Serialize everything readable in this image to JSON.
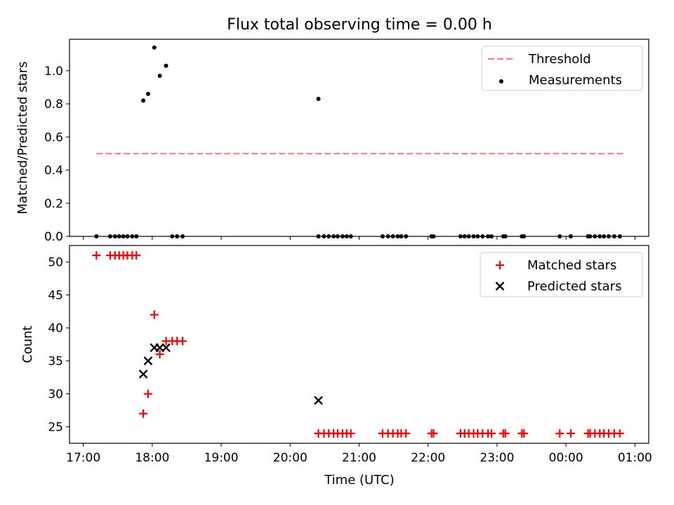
{
  "title": "Flux total observing time = 0.00 h",
  "xlabel": "Time (UTC)",
  "x_tick_labels": [
    "17:00",
    "18:00",
    "19:00",
    "20:00",
    "21:00",
    "22:00",
    "23:00",
    "00:00",
    "01:00"
  ],
  "colors": {
    "threshold": "#ff7f7f",
    "measurement": "#000000",
    "matched": "#ff0000",
    "predicted": "#000000"
  },
  "chart_data": [
    {
      "type": "scatter",
      "ylabel": "Matched/Predicted stars",
      "ylim": [
        0,
        1.19
      ],
      "yticks": [
        "0.0",
        "0.2",
        "0.4",
        "0.6",
        "0.8",
        "1.0"
      ],
      "ytick_values": [
        0,
        0.2,
        0.4,
        0.6,
        0.8,
        1.0
      ],
      "x_unit": "hours after 17:00 UTC",
      "xlim": [
        -0.2,
        8.2
      ],
      "legend": {
        "placement": "top-right",
        "entries": [
          "Threshold",
          "Measurements"
        ]
      },
      "threshold": {
        "name": "Threshold",
        "y": 0.5,
        "x_start": 0.19,
        "x_end": 7.83
      },
      "series": [
        {
          "name": "Measurements",
          "x": [
            0.19,
            0.39,
            0.46,
            0.52,
            0.58,
            0.64,
            0.71,
            0.77,
            0.87,
            0.94,
            1.03,
            1.11,
            1.2,
            1.29,
            1.36,
            1.44,
            3.41,
            3.41,
            3.49,
            3.56,
            3.63,
            3.69,
            3.76,
            3.82,
            3.88,
            4.34,
            4.42,
            4.49,
            4.56,
            4.61,
            4.68,
            5.05,
            5.08,
            5.47,
            5.53,
            5.59,
            5.66,
            5.72,
            5.79,
            5.87,
            5.92,
            6.09,
            6.12,
            6.36,
            6.39,
            6.91,
            7.07,
            7.32,
            7.35,
            7.42,
            7.49,
            7.55,
            7.62,
            7.7,
            7.78
          ],
          "y": [
            0,
            0,
            0,
            0,
            0,
            0,
            0,
            0,
            0.82,
            0.86,
            1.14,
            0.97,
            1.03,
            0,
            0,
            0,
            0.83,
            0,
            0,
            0,
            0,
            0,
            0,
            0,
            0,
            0,
            0,
            0,
            0,
            0,
            0,
            0,
            0,
            0,
            0,
            0,
            0,
            0,
            0,
            0,
            0,
            0,
            0,
            0,
            0,
            0,
            0,
            0,
            0,
            0,
            0,
            0,
            0,
            0,
            0
          ]
        }
      ]
    },
    {
      "type": "scatter",
      "ylabel": "Count",
      "ylim": [
        22.5,
        52.5
      ],
      "yticks": [
        "25",
        "30",
        "35",
        "40",
        "45",
        "50"
      ],
      "ytick_values": [
        25,
        30,
        35,
        40,
        45,
        50
      ],
      "x_unit": "hours after 17:00 UTC",
      "xlim": [
        -0.2,
        8.2
      ],
      "legend": {
        "placement": "top-right",
        "entries": [
          "Matched stars",
          "Predicted stars"
        ]
      },
      "series": [
        {
          "name": "Matched stars",
          "marker": "plus",
          "x": [
            0.19,
            0.39,
            0.46,
            0.52,
            0.58,
            0.64,
            0.71,
            0.77,
            0.87,
            0.94,
            1.03,
            1.11,
            1.2,
            1.29,
            1.36,
            1.44,
            3.41,
            3.49,
            3.56,
            3.63,
            3.69,
            3.76,
            3.82,
            3.88,
            4.34,
            4.42,
            4.49,
            4.56,
            4.61,
            4.68,
            5.05,
            5.08,
            5.47,
            5.53,
            5.59,
            5.66,
            5.72,
            5.79,
            5.87,
            5.92,
            6.09,
            6.12,
            6.36,
            6.39,
            6.91,
            7.07,
            7.32,
            7.35,
            7.42,
            7.49,
            7.55,
            7.62,
            7.7,
            7.78
          ],
          "y": [
            51,
            51,
            51,
            51,
            51,
            51,
            51,
            51,
            27,
            30,
            42,
            36,
            38,
            38,
            38,
            38,
            24,
            24,
            24,
            24,
            24,
            24,
            24,
            24,
            24,
            24,
            24,
            24,
            24,
            24,
            24,
            24,
            24,
            24,
            24,
            24,
            24,
            24,
            24,
            24,
            24,
            24,
            24,
            24,
            24,
            24,
            24,
            24,
            24,
            24,
            24,
            24,
            24,
            24
          ]
        },
        {
          "name": "Predicted stars",
          "marker": "x",
          "x": [
            0.87,
            0.94,
            1.03,
            1.11,
            1.2,
            3.41
          ],
          "y": [
            33,
            35,
            37,
            37,
            37,
            29
          ]
        }
      ]
    }
  ]
}
